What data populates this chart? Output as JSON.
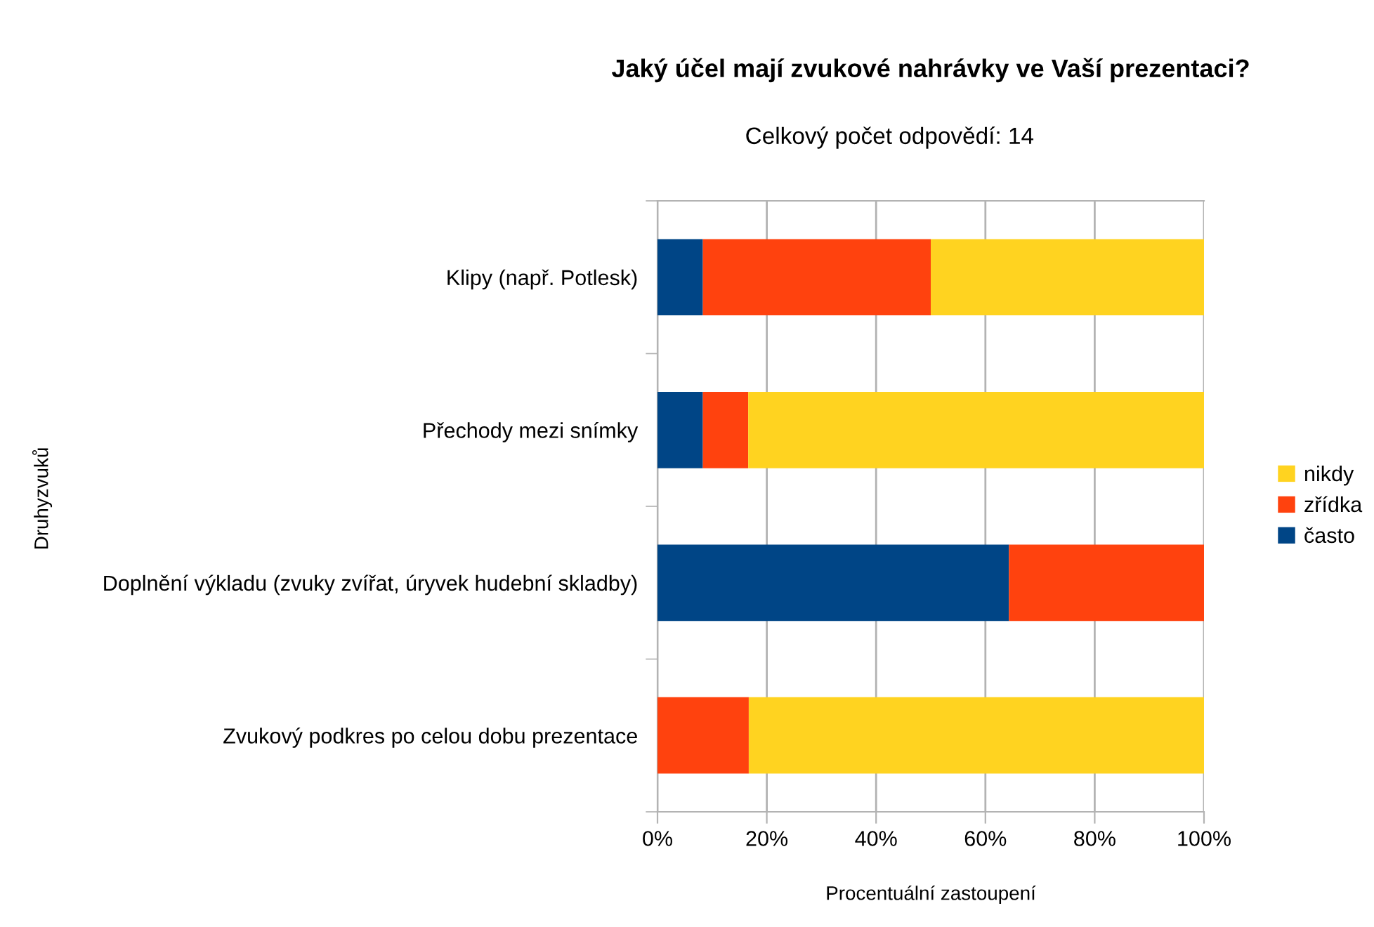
{
  "chart_data": {
    "type": "bar",
    "orientation": "horizontal",
    "stacked": true,
    "title": "Jaký účel mají zvukové nahrávky ve Vaší prezentaci?",
    "subtitle": "Celkový počet odpovědí: 14",
    "xlabel": "Procentuální zastoupení",
    "ylabel": "Druhyzvuků",
    "categories": [
      "Klipy (např. Potlesk)",
      "Přechody mezi snímky",
      "Doplnění výkladu (zvuky zvířat, úryvek hudební skladby)",
      "Zvukový podkres po celou dobu prezentace"
    ],
    "series": [
      {
        "name": "často",
        "color": "#004586",
        "values": [
          8.3,
          8.3,
          64.3,
          0
        ]
      },
      {
        "name": "zřídka",
        "color": "#ff420e",
        "values": [
          41.7,
          8.3,
          35.7,
          16.7
        ]
      },
      {
        "name": "nikdy",
        "color": "#ffd320",
        "values": [
          50,
          83.4,
          0,
          83.3
        ]
      }
    ],
    "xlim": [
      0,
      100
    ],
    "xticks": [
      {
        "value": 0,
        "label": "0%"
      },
      {
        "value": 20,
        "label": "20%"
      },
      {
        "value": 40,
        "label": "40%"
      },
      {
        "value": 60,
        "label": "60%"
      },
      {
        "value": 80,
        "label": "80%"
      },
      {
        "value": 100,
        "label": "100%"
      }
    ],
    "grid": "x",
    "legend": "right"
  }
}
